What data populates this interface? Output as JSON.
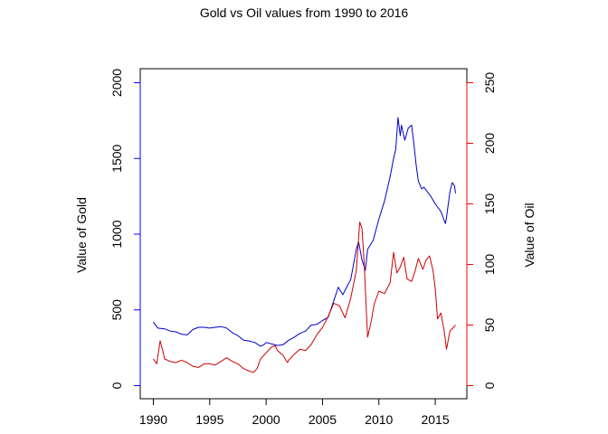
{
  "chart_data": {
    "type": "line",
    "title": "Gold vs Oil values from 1990 to 2016",
    "xlabel": "",
    "y_left_label": "Value of Gold",
    "y_right_label": "Value of Oil",
    "xlim": [
      1990,
      2016.8
    ],
    "x_ticks": [
      1990,
      1995,
      2000,
      2005,
      2010,
      2015
    ],
    "y_left_lim": [
      0,
      2000
    ],
    "y_left_ticks": [
      0,
      500,
      1000,
      1500,
      2000
    ],
    "y_right_lim": [
      0,
      250
    ],
    "y_right_ticks": [
      0,
      50,
      100,
      150,
      200,
      250
    ],
    "grid": false,
    "legend": "none",
    "series": [
      {
        "axis": "left",
        "color": "#0000cc",
        "x": [
          1990.0,
          1990.4,
          1991.0,
          1991.5,
          1992.0,
          1992.5,
          1993.0,
          1993.5,
          1994.0,
          1994.5,
          1995.0,
          1995.5,
          1996.0,
          1996.5,
          1997.0,
          1997.5,
          1998.0,
          1998.5,
          1999.0,
          1999.5,
          1999.8,
          2000.0,
          2000.5,
          2001.0,
          2001.5,
          2002.0,
          2002.5,
          2003.0,
          2003.5,
          2004.0,
          2004.5,
          2005.0,
          2005.5,
          2006.0,
          2006.4,
          2006.8,
          2007.0,
          2007.5,
          2008.0,
          2008.2,
          2008.5,
          2008.8,
          2009.0,
          2009.5,
          2010.0,
          2010.5,
          2011.0,
          2011.3,
          2011.5,
          2011.7,
          2011.9,
          2012.0,
          2012.3,
          2012.6,
          2012.9,
          2013.1,
          2013.3,
          2013.5,
          2013.8,
          2014.0,
          2014.3,
          2014.6,
          2015.0,
          2015.5,
          2015.9,
          2016.0,
          2016.3,
          2016.5,
          2016.7,
          2016.8
        ],
        "values": [
          420,
          380,
          375,
          360,
          355,
          340,
          335,
          370,
          385,
          385,
          380,
          385,
          390,
          380,
          350,
          330,
          300,
          295,
          285,
          260,
          270,
          285,
          275,
          265,
          270,
          300,
          320,
          345,
          360,
          400,
          405,
          430,
          450,
          560,
          650,
          600,
          630,
          700,
          900,
          950,
          830,
          760,
          900,
          960,
          1100,
          1220,
          1380,
          1500,
          1560,
          1770,
          1650,
          1720,
          1620,
          1700,
          1720,
          1600,
          1460,
          1350,
          1300,
          1310,
          1280,
          1250,
          1200,
          1150,
          1070,
          1110,
          1280,
          1340,
          1320,
          1270
        ]
      },
      {
        "axis": "right",
        "color": "#cc0000",
        "x": [
          1990.0,
          1990.3,
          1990.6,
          1990.8,
          1991.0,
          1991.5,
          1992.0,
          1992.5,
          1993.0,
          1993.5,
          1994.0,
          1994.5,
          1995.0,
          1995.5,
          1996.0,
          1996.5,
          1997.0,
          1997.5,
          1998.0,
          1998.5,
          1998.9,
          1999.2,
          1999.5,
          2000.0,
          2000.5,
          2000.8,
          2001.0,
          2001.5,
          2001.9,
          2002.0,
          2002.5,
          2003.0,
          2003.5,
          2004.0,
          2004.5,
          2005.0,
          2005.5,
          2006.0,
          2006.5,
          2007.0,
          2007.5,
          2008.0,
          2008.3,
          2008.5,
          2008.7,
          2008.9,
          2009.0,
          2009.3,
          2009.6,
          2010.0,
          2010.5,
          2011.0,
          2011.3,
          2011.6,
          2011.9,
          2012.2,
          2012.5,
          2012.9,
          2013.2,
          2013.5,
          2013.9,
          2014.2,
          2014.5,
          2014.8,
          2015.0,
          2015.2,
          2015.5,
          2015.8,
          2016.0,
          2016.3,
          2016.5,
          2016.8
        ],
        "values": [
          22,
          18,
          37,
          30,
          22,
          20,
          19,
          21,
          19,
          16,
          15,
          18,
          18,
          17,
          20,
          23,
          20,
          18,
          14,
          12,
          11,
          14,
          22,
          27,
          32,
          33,
          29,
          25,
          19,
          21,
          26,
          30,
          29,
          34,
          42,
          48,
          57,
          68,
          66,
          56,
          72,
          95,
          135,
          130,
          100,
          60,
          40,
          52,
          68,
          78,
          76,
          85,
          110,
          93,
          98,
          106,
          88,
          86,
          94,
          105,
          96,
          104,
          107,
          95,
          80,
          55,
          60,
          45,
          30,
          45,
          47,
          50
        ]
      }
    ]
  }
}
